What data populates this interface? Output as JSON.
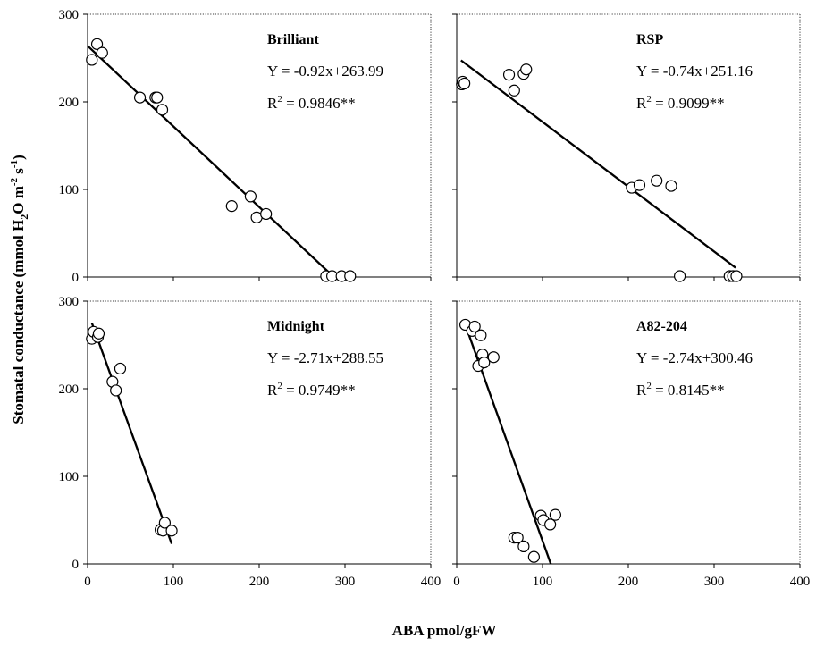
{
  "chart_data": {
    "type": "scatter",
    "ylabel": "Stomatal conductance (mmol H2O m-2 s-1)",
    "ylabel_parts": [
      "Stomatal conductance (mmol H",
      "2",
      "O m",
      "-2",
      " s",
      "-1",
      ")"
    ],
    "xlabel": "ABA pmol/gFW",
    "xlim": [
      0,
      400
    ],
    "ylim": [
      0,
      300
    ],
    "x_ticks": [
      "0",
      "100",
      "200",
      "300",
      "400"
    ],
    "y_ticks": [
      "0",
      "100",
      "200",
      "300"
    ],
    "panels": [
      {
        "title": "Brilliant",
        "equation": "Y = -0.92x+263.99",
        "r2_prefix": "R",
        "r2_sup": "2",
        "r2_value": " = 0.9846**",
        "slope": -0.92,
        "intercept": 263.99,
        "fit_x": [
          0,
          286
        ],
        "points": [
          [
            5,
            248
          ],
          [
            11,
            266
          ],
          [
            17,
            256
          ],
          [
            61,
            205
          ],
          [
            79,
            205
          ],
          [
            81,
            205
          ],
          [
            87,
            191
          ],
          [
            168,
            81
          ],
          [
            190,
            92
          ],
          [
            197,
            68
          ],
          [
            208,
            72
          ],
          [
            278,
            1
          ],
          [
            285,
            1
          ],
          [
            296,
            1
          ],
          [
            306,
            1
          ]
        ]
      },
      {
        "title": "RSP",
        "equation": "Y = -0.74x+251.16",
        "r2_prefix": "R",
        "r2_sup": "2",
        "r2_value": " = 0.9099**",
        "slope": -0.74,
        "intercept": 251.16,
        "fit_x": [
          5,
          325
        ],
        "points": [
          [
            6,
            220
          ],
          [
            7,
            223
          ],
          [
            9,
            221
          ],
          [
            61,
            231
          ],
          [
            67,
            213
          ],
          [
            78,
            232
          ],
          [
            81,
            237
          ],
          [
            204,
            102
          ],
          [
            213,
            105
          ],
          [
            233,
            110
          ],
          [
            250,
            104
          ],
          [
            260,
            1
          ],
          [
            318,
            1
          ],
          [
            322,
            1
          ],
          [
            326,
            1
          ]
        ]
      },
      {
        "title": "Midnight",
        "equation": "Y = -2.71x+288.55",
        "r2_prefix": "R",
        "r2_sup": "2",
        "r2_value": " = 0.9749**",
        "slope": -2.71,
        "intercept": 288.55,
        "fit_x": [
          5,
          98
        ],
        "points": [
          [
            5,
            257
          ],
          [
            7,
            265
          ],
          [
            12,
            259
          ],
          [
            13,
            263
          ],
          [
            29,
            208
          ],
          [
            33,
            198
          ],
          [
            38,
            223
          ],
          [
            85,
            39
          ],
          [
            88,
            38
          ],
          [
            90,
            47
          ],
          [
            98,
            38
          ]
        ]
      },
      {
        "title": "A82-204",
        "equation": "Y = -2.74x+300.46",
        "r2_prefix": "R",
        "r2_sup": "2",
        "r2_value": " = 0.8145**",
        "slope": -2.74,
        "intercept": 300.46,
        "fit_x": [
          8,
          109.6
        ],
        "points": [
          [
            10,
            273
          ],
          [
            18,
            266
          ],
          [
            21,
            271
          ],
          [
            25,
            226
          ],
          [
            28,
            261
          ],
          [
            30,
            239
          ],
          [
            32,
            230
          ],
          [
            43,
            236
          ],
          [
            67,
            30
          ],
          [
            71,
            30
          ],
          [
            78,
            20
          ],
          [
            90,
            8
          ],
          [
            98,
            55
          ],
          [
            101,
            50
          ],
          [
            109,
            45
          ],
          [
            115,
            56
          ]
        ]
      }
    ]
  }
}
